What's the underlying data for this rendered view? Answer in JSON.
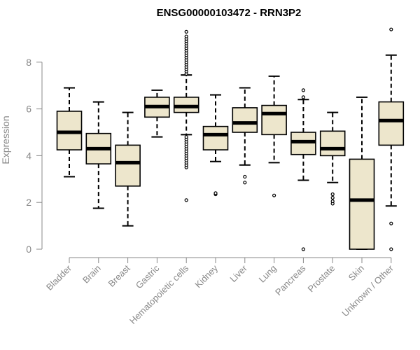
{
  "chart_data": {
    "type": "boxplot",
    "title": "ENSG00000103472 - RRN3P2",
    "xlabel": "",
    "ylabel": "Expression",
    "ylim": [
      0,
      9.6
    ],
    "yticks": [
      "0",
      "2",
      "4",
      "6",
      "8"
    ],
    "grid": false,
    "legend": "none",
    "box_fill": "#ede6cc",
    "box_stroke": "#000000",
    "median_color": "#000000",
    "categories": [
      "Bladder",
      "Brain",
      "Breast",
      "Gastric",
      "Hematopoietic cells",
      "Kidney",
      "Liver",
      "Lung",
      "Pancreas",
      "Prostate",
      "Skin",
      "Unknown / Other"
    ],
    "boxes": [
      {
        "min": 3.1,
        "q1": 4.25,
        "median": 5.0,
        "q3": 5.9,
        "max": 6.9,
        "outliers": []
      },
      {
        "min": 1.75,
        "q1": 3.65,
        "median": 4.3,
        "q3": 4.95,
        "max": 6.3,
        "outliers": []
      },
      {
        "min": 1.0,
        "q1": 2.7,
        "median": 3.7,
        "q3": 4.45,
        "max": 5.85,
        "outliers": []
      },
      {
        "min": 4.8,
        "q1": 5.65,
        "median": 6.1,
        "q3": 6.5,
        "max": 6.8,
        "outliers": []
      },
      {
        "min": 4.9,
        "q1": 5.85,
        "median": 6.1,
        "q3": 6.5,
        "max": 7.45,
        "outliers": [
          2.1,
          3.5,
          3.6,
          3.7,
          3.8,
          3.9,
          4.0,
          4.1,
          4.2,
          4.3,
          4.4,
          4.5,
          4.6,
          4.7,
          4.8,
          7.5,
          7.6,
          7.7,
          7.8,
          7.9,
          8.0,
          8.1,
          8.2,
          8.3,
          8.4,
          8.5,
          8.6,
          8.7,
          8.8,
          8.9,
          9.0,
          9.1,
          9.3
        ]
      },
      {
        "min": 3.75,
        "q1": 4.25,
        "median": 4.9,
        "q3": 5.25,
        "max": 6.6,
        "outliers": [
          2.35,
          2.4
        ]
      },
      {
        "min": 3.6,
        "q1": 5.0,
        "median": 5.4,
        "q3": 6.05,
        "max": 6.9,
        "outliers": [
          2.85,
          3.1
        ]
      },
      {
        "min": 3.7,
        "q1": 4.9,
        "median": 5.8,
        "q3": 6.15,
        "max": 7.4,
        "outliers": [
          2.3
        ]
      },
      {
        "min": 2.95,
        "q1": 4.05,
        "median": 4.6,
        "q3": 5.0,
        "max": 6.4,
        "outliers": [
          0.0,
          6.5,
          6.8
        ]
      },
      {
        "min": 2.85,
        "q1": 4.0,
        "median": 4.3,
        "q3": 5.05,
        "max": 5.85,
        "outliers": [
          1.95,
          2.05,
          2.2,
          2.35
        ]
      },
      {
        "min": 0.0,
        "q1": 0.0,
        "median": 2.1,
        "q3": 3.85,
        "max": 6.5,
        "outliers": []
      },
      {
        "min": 1.85,
        "q1": 4.45,
        "median": 5.5,
        "q3": 6.3,
        "max": 8.3,
        "outliers": [
          0.0,
          1.1,
          9.4
        ]
      }
    ]
  }
}
